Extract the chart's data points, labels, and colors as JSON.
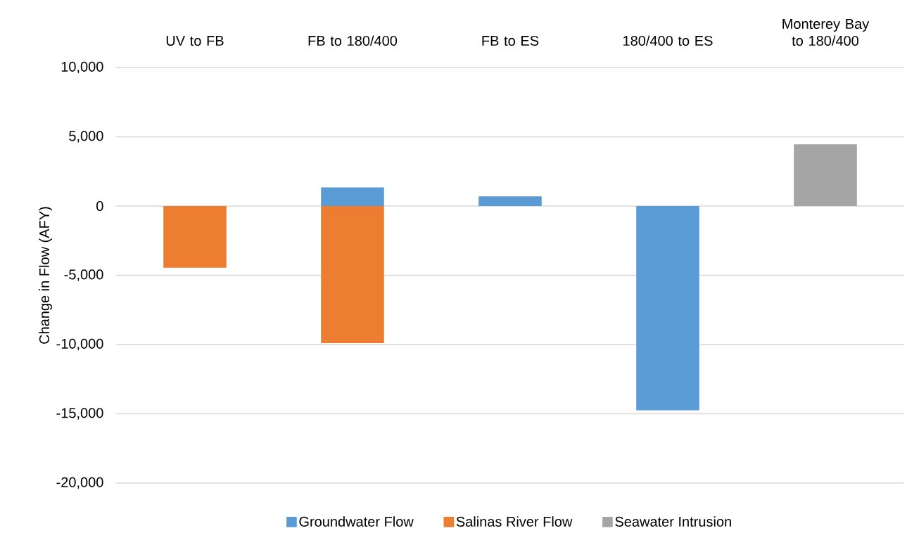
{
  "chart_data": {
    "type": "bar",
    "stacked": true,
    "ylabel": "Change in Flow (AFY)",
    "categories": [
      "UV to FB",
      "FB to 180/400",
      "FB to ES",
      "180/400 to ES",
      "Monterey Bay to 180/400"
    ],
    "series": [
      {
        "name": "Groundwater Flow",
        "color": "#5b9bd5",
        "values": [
          null,
          1350,
          700,
          -14750,
          null
        ]
      },
      {
        "name": "Salinas River Flow",
        "color": "#ed7d31",
        "values": [
          -4450,
          -9900,
          null,
          null,
          null
        ]
      },
      {
        "name": "Seawater Intrusion",
        "color": "#a5a5a5",
        "values": [
          null,
          null,
          null,
          null,
          4450
        ]
      }
    ],
    "ylim": [
      -20000,
      10000
    ],
    "yticks": [
      {
        "value": -20000,
        "label": "-20,000"
      },
      {
        "value": -15000,
        "label": "-15,000"
      },
      {
        "value": -10000,
        "label": "-10,000"
      },
      {
        "value": -5000,
        "label": "-5,000"
      },
      0,
      {
        "value": 5000,
        "label": "5,000"
      },
      {
        "value": 10000,
        "label": "10,000"
      }
    ],
    "grid": "y",
    "legend": "bottom"
  }
}
